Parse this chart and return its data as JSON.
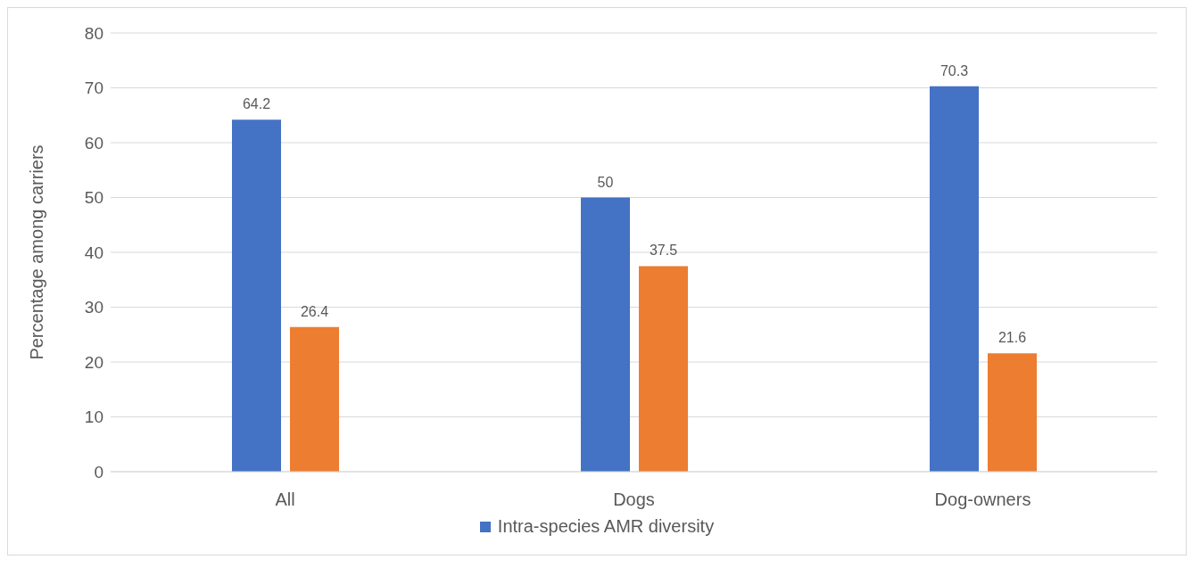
{
  "chart_data": {
    "type": "bar",
    "ylabel": "Percentage  among carriers",
    "categories": [
      "All",
      "Dogs",
      "Dog-owners"
    ],
    "series": [
      {
        "name": "Intra-species AMR diversity",
        "color": "#4472c4",
        "values": [
          64.2,
          50,
          70.3
        ]
      },
      {
        "color": "#ed7d31",
        "values": [
          26.4,
          37.5,
          21.6
        ]
      }
    ],
    "ylim": [
      0,
      80
    ],
    "yticks": [
      0,
      10,
      20,
      30,
      40,
      50,
      60,
      70,
      80
    ],
    "grid": "y",
    "legend": "bottom",
    "data_labels": true
  }
}
